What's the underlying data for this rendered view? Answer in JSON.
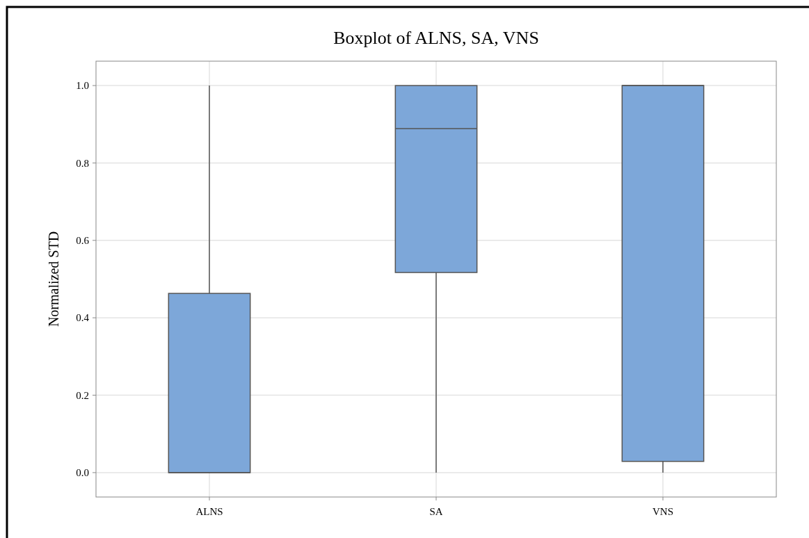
{
  "chart_data": {
    "type": "box",
    "title": "Boxplot of ALNS, SA, VNS",
    "ylabel": "Normalized STD",
    "categories": [
      "ALNS",
      "SA",
      "VNS"
    ],
    "color": "#7da7d9",
    "boxes": [
      {
        "low": 0,
        "q1": 0,
        "median": 0,
        "q3": 0.463,
        "high": 1
      },
      {
        "low": 0,
        "q1": 0.517,
        "median": 0.889,
        "q3": 1,
        "high": 1
      },
      {
        "low": 0,
        "q1": 0.029,
        "median": 1,
        "q3": 1,
        "high": 1
      }
    ],
    "ylim": [
      -0.063,
      1.063
    ],
    "yticks": [
      {
        "value": 0,
        "label": "0.0"
      },
      {
        "value": 0.2,
        "label": "0.2"
      },
      {
        "value": 0.4,
        "label": "0.4"
      },
      {
        "value": 0.6,
        "label": "0.6"
      },
      {
        "value": 0.8,
        "label": "0.8"
      },
      {
        "value": 1,
        "label": "1.0"
      }
    ],
    "grid": true
  }
}
